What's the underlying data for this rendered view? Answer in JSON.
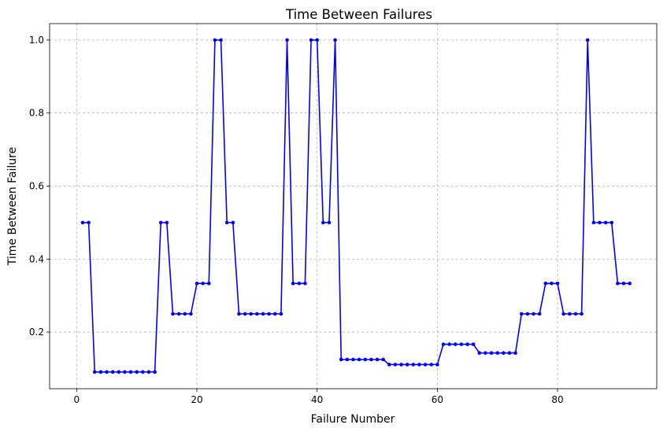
{
  "chart_data": {
    "type": "line",
    "title": "Time Between Failures",
    "xlabel": "Failure Number",
    "ylabel": "Time Between Failure",
    "xlim": [
      -4.5,
      96.5
    ],
    "ylim": [
      0.045,
      1.045
    ],
    "xticks": [
      0,
      20,
      40,
      60,
      80
    ],
    "yticks": [
      0.2,
      0.4,
      0.6,
      0.8,
      1.0
    ],
    "grid": true,
    "series": [
      {
        "color": "#0000ff",
        "marker": "circle",
        "x": [
          1,
          2,
          3,
          4,
          5,
          6,
          7,
          8,
          9,
          10,
          11,
          12,
          13,
          14,
          15,
          16,
          17,
          18,
          19,
          20,
          21,
          22,
          23,
          24,
          25,
          26,
          27,
          28,
          29,
          30,
          31,
          32,
          33,
          34,
          35,
          36,
          37,
          38,
          39,
          40,
          41,
          42,
          43,
          44,
          45,
          46,
          47,
          48,
          49,
          50,
          51,
          52,
          53,
          54,
          55,
          56,
          57,
          58,
          59,
          60,
          61,
          62,
          63,
          64,
          65,
          66,
          67,
          68,
          69,
          70,
          71,
          72,
          73,
          74,
          75,
          76,
          77,
          78,
          79,
          80,
          81,
          82,
          83,
          84,
          85,
          86,
          87,
          88,
          89,
          90,
          91,
          92
        ],
        "y": [
          0.5,
          0.5,
          0.0909,
          0.0909,
          0.0909,
          0.0909,
          0.0909,
          0.0909,
          0.0909,
          0.0909,
          0.0909,
          0.0909,
          0.0909,
          0.5,
          0.5,
          0.25,
          0.25,
          0.25,
          0.25,
          0.3333,
          0.3333,
          0.3333,
          1.0,
          1.0,
          0.5,
          0.5,
          0.25,
          0.25,
          0.25,
          0.25,
          0.25,
          0.25,
          0.25,
          0.25,
          1.0,
          0.3333,
          0.3333,
          0.3333,
          1.0,
          1.0,
          0.5,
          0.5,
          1.0,
          0.125,
          0.125,
          0.125,
          0.125,
          0.125,
          0.125,
          0.125,
          0.125,
          0.1111,
          0.1111,
          0.1111,
          0.1111,
          0.1111,
          0.1111,
          0.1111,
          0.1111,
          0.1111,
          0.1667,
          0.1667,
          0.1667,
          0.1667,
          0.1667,
          0.1667,
          0.1429,
          0.1429,
          0.1429,
          0.1429,
          0.1429,
          0.1429,
          0.1429,
          0.25,
          0.25,
          0.25,
          0.25,
          0.3333,
          0.3333,
          0.3333,
          0.25,
          0.25,
          0.25,
          0.25,
          1.0,
          0.5,
          0.5,
          0.5,
          0.5,
          0.3333,
          0.3333,
          0.3333
        ]
      }
    ]
  }
}
